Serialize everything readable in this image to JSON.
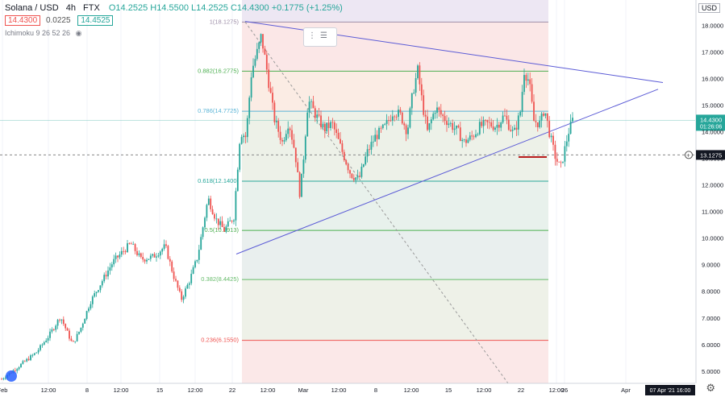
{
  "header": {
    "symbol": "Solana / USD",
    "interval": "4h",
    "exchange": "FTX",
    "ohlc": "O14.2525 H14.5500 L14.2525 C14.4300 +0.1775 (+1.25%)",
    "bid": "14.4300",
    "spread": "0.0225",
    "ask": "14.4525",
    "indicator": "Ichimoku 9 26 52 26",
    "currency": "USD"
  },
  "colors": {
    "up": "#26a69a",
    "down": "#ef5350",
    "trend": "#5b5bd6",
    "bg": "#ffffff"
  },
  "icons": {
    "eye": "eye-icon",
    "gear": "gear-icon",
    "toolbar": "drag-handle-icon",
    "logo": "tradingview-logo-icon"
  },
  "chart_data": {
    "type": "candlestick",
    "title": "Solana / USD, 4h, FTX",
    "ylim": [
      4.6,
      19.5
    ],
    "y_ticks": [
      "5.0000",
      "6.0000",
      "7.0000",
      "8.0000",
      "9.0000",
      "10.0000",
      "11.0000",
      "12.0000",
      "13.0000",
      "14.0000",
      "15.0000",
      "16.0000",
      "17.0000",
      "18.0000",
      "19.0000"
    ],
    "x_ticks": [
      "Feb",
      "12:00",
      "8",
      "12:00",
      "15",
      "12:00",
      "22",
      "12:00",
      "Mar",
      "12:00",
      "8",
      "12:00",
      "15",
      "12:00",
      "22",
      "12:00",
      "26",
      "Apr"
    ],
    "x_tick_points": [
      3,
      60,
      108,
      150,
      198,
      242,
      288,
      332,
      376,
      420,
      466,
      510,
      556,
      600,
      646,
      690,
      700,
      776
    ],
    "cursor_time": "07 Apr '21   16:00",
    "last_price": "14.4300",
    "countdown": "01:26:06",
    "crosshair_price": "13.1275",
    "fib_levels": [
      {
        "label": "1(18.1275)",
        "value": 18.1275
      },
      {
        "label": "0.882(16.2775)",
        "value": 16.2775
      },
      {
        "label": "0.786(14.7725)",
        "value": 14.7725
      },
      {
        "label": "0.618(12.1400)",
        "value": 12.14
      },
      {
        "label": "0.5(10.2913)",
        "value": 10.2913
      },
      {
        "label": "0.382(8.4425)",
        "value": 8.4425
      },
      {
        "label": "0.236(6.1550)",
        "value": 6.155
      },
      {
        "label": "0.1(4.0275)",
        "value": 4.0275
      }
    ],
    "trendlines": [
      {
        "name": "upper",
        "points": [
          [
            304,
            18.15
          ],
          [
            822,
            15.85
          ]
        ]
      },
      {
        "name": "lower",
        "points": [
          [
            293,
            9.4
          ],
          [
            816,
            15.6
          ]
        ]
      }
    ],
    "price_path": [
      [
        2,
        4.7
      ],
      [
        20,
        5.1
      ],
      [
        45,
        5.7
      ],
      [
        60,
        6.3
      ],
      [
        75,
        7.05
      ],
      [
        90,
        6.0
      ],
      [
        100,
        6.6
      ],
      [
        112,
        7.6
      ],
      [
        125,
        8.3
      ],
      [
        140,
        9.1
      ],
      [
        162,
        9.8
      ],
      [
        175,
        9.2
      ],
      [
        190,
        9.3
      ],
      [
        205,
        9.7
      ],
      [
        215,
        8.6
      ],
      [
        225,
        7.7
      ],
      [
        235,
        8.4
      ],
      [
        245,
        9.3
      ],
      [
        258,
        11.5
      ],
      [
        268,
        10.7
      ],
      [
        278,
        10.3
      ],
      [
        290,
        10.8
      ],
      [
        298,
        14.0
      ],
      [
        305,
        13.8
      ],
      [
        312,
        16.3
      ],
      [
        320,
        17.1
      ],
      [
        324,
        17.6
      ],
      [
        330,
        16.5
      ],
      [
        340,
        14.5
      ],
      [
        350,
        13.6
      ],
      [
        358,
        14.4
      ],
      [
        366,
        13.2
      ],
      [
        372,
        11.6
      ],
      [
        376,
        12.9
      ],
      [
        382,
        15.2
      ],
      [
        392,
        14.6
      ],
      [
        402,
        14.1
      ],
      [
        412,
        14.3
      ],
      [
        425,
        13.2
      ],
      [
        435,
        12.4
      ],
      [
        445,
        12.2
      ],
      [
        455,
        13.2
      ],
      [
        465,
        13.8
      ],
      [
        478,
        14.2
      ],
      [
        488,
        14.8
      ],
      [
        497,
        14.6
      ],
      [
        505,
        14.0
      ],
      [
        512,
        15.5
      ],
      [
        518,
        16.3
      ],
      [
        524,
        15.0
      ],
      [
        530,
        14.0
      ],
      [
        540,
        14.9
      ],
      [
        548,
        14.6
      ],
      [
        558,
        14.3
      ],
      [
        568,
        14.0
      ],
      [
        575,
        13.6
      ],
      [
        585,
        13.8
      ],
      [
        595,
        14.2
      ],
      [
        605,
        14.3
      ],
      [
        615,
        14.2
      ],
      [
        625,
        14.6
      ],
      [
        637,
        13.9
      ],
      [
        645,
        14.7
      ],
      [
        650,
        16.3
      ],
      [
        656,
        15.9
      ],
      [
        662,
        14.4
      ],
      [
        670,
        14.3
      ],
      [
        675,
        14.9
      ],
      [
        681,
        14.0
      ],
      [
        688,
        13.1
      ],
      [
        695,
        12.6
      ],
      [
        700,
        13.3
      ],
      [
        705,
        14.0
      ],
      [
        710,
        14.43
      ]
    ],
    "end_x": 712
  }
}
